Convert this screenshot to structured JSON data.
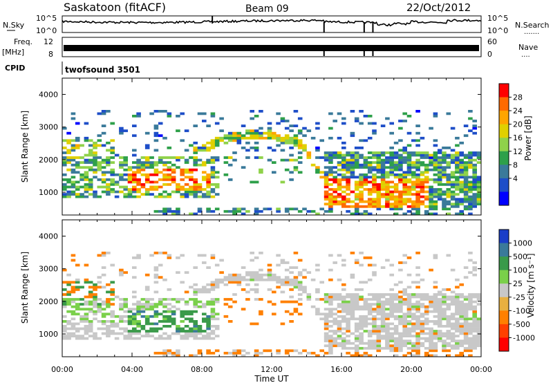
{
  "header": {
    "station": "Saskatoon (fitACF)",
    "beam": "Beam 09",
    "date": "22/Oct/2012"
  },
  "noise_panel": {
    "left_label": "N.Sky",
    "right_label": "N.Search",
    "right_dots": ".......",
    "left_ticks": [
      "10^5",
      "10^0"
    ],
    "right_ticks": [
      "10^5",
      "10^0"
    ]
  },
  "freq_panel": {
    "left_label_top": "Freq.",
    "left_label_bottom": "[MHz]",
    "left_ticks": [
      "12",
      "8"
    ],
    "right_label": "Nave",
    "right_dots": "....",
    "right_ticks": [
      "60",
      "0"
    ]
  },
  "cpid": {
    "label": "CPID",
    "value": "twofsound 3501"
  },
  "x_axis": {
    "label": "Time UT",
    "ticks": [
      "00:00",
      "04:00",
      "08:00",
      "12:00",
      "16:00",
      "20:00",
      "00:00"
    ]
  },
  "colors": {
    "ground_scatter": "#b4b4b4"
  },
  "chart_data": [
    {
      "type": "heatmap",
      "quantity": "power",
      "x_range_hours": [
        0,
        24
      ],
      "ylabel": "Slant Range [km]",
      "ylim": [
        300,
        4500
      ],
      "yticks": [
        "1000",
        "2000",
        "3000",
        "4000"
      ],
      "colorbar": {
        "label": "Power [dB]",
        "ticks": [
          "28",
          "24",
          "20",
          "16",
          "12",
          "8",
          "4"
        ],
        "colors": [
          "#ff0000",
          "#ff6a00",
          "#ffa500",
          "#e0d000",
          "#8fd24a",
          "#2ea04a",
          "#3a7a9a",
          "#1e4ec8",
          "#0000ff"
        ]
      }
    },
    {
      "type": "heatmap",
      "quantity": "velocity",
      "x_range_hours": [
        0,
        24
      ],
      "ylabel": "Slant Range [km]",
      "ylim": [
        300,
        4500
      ],
      "yticks": [
        "1000",
        "2000",
        "3000",
        "4000"
      ],
      "colorbar": {
        "label": "Velocity [m s⁻¹]",
        "ticks": [
          "1000",
          "500",
          "100",
          "25",
          "-25",
          "-100",
          "-500",
          "-1000"
        ],
        "colors": [
          "#1a3ec8",
          "#3a7a9a",
          "#3a9a4a",
          "#7ad04a",
          "#c8c8c8",
          "#e8b040",
          "#ff8000",
          "#ff4000",
          "#ff0000"
        ]
      }
    }
  ]
}
